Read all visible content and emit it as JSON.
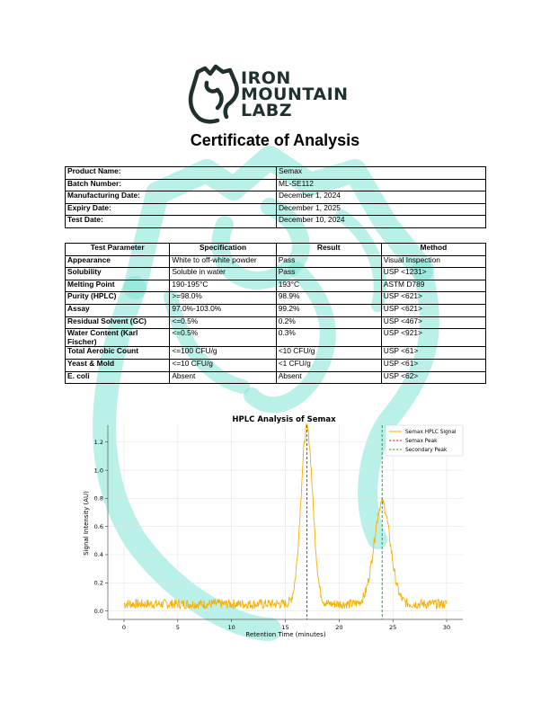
{
  "logo": {
    "line1": "IRON",
    "line2": "MOUNTAIN",
    "line3": "LABZ",
    "icon": "mountain-head-icon"
  },
  "title": "Certificate of Analysis",
  "product_info": [
    {
      "label": "Product Name:",
      "value": "Semax"
    },
    {
      "label": "Batch Number:",
      "value": "ML-SE112"
    },
    {
      "label": "Manufacturing Date:",
      "value": "December 1, 2024"
    },
    {
      "label": "Expiry Date:",
      "value": "December 1, 2025"
    },
    {
      "label": "Test Date:",
      "value": "December 10, 2024"
    }
  ],
  "tests": {
    "headers": [
      "Test Parameter",
      "Specification",
      "Result",
      "Method"
    ],
    "rows": [
      [
        "Appearance",
        "White to off-white powder",
        "Pass",
        "Visual Inspection"
      ],
      [
        "Solubility",
        "Soluble in water",
        "Pass",
        "USP <1231>"
      ],
      [
        "Melting Point",
        "190-195°C",
        "193°C",
        "ASTM D789"
      ],
      [
        "Purity (HPLC)",
        ">=98.0%",
        "98.9%",
        "USP <621>"
      ],
      [
        "Assay",
        "97.0%-103.0%",
        "99.2%",
        "USP <621>"
      ],
      [
        "Residual Solvent (GC)",
        "<=0.5%",
        "0.2%",
        "USP <467>"
      ],
      [
        "Water Content (Karl Fischer)",
        "<=0.5%",
        "0.3%",
        "USP <921>"
      ],
      [
        "Total Aerobic Count",
        "<=100 CFU/g",
        "<10 CFU/g",
        "USP <61>"
      ],
      [
        "Yeast & Mold",
        "<=10 CFU/g",
        "<1 CFU/g",
        "USP <61>"
      ],
      [
        "E. coli",
        "Absent",
        "Absent",
        "USP <62>"
      ]
    ]
  },
  "chart_data": {
    "type": "line",
    "title": "HPLC Analysis of Semax",
    "xlabel": "Retention Time (minutes)",
    "ylabel": "Signal Intensity (AU)",
    "xlim": [
      -1.5,
      31.5
    ],
    "ylim": [
      -0.06,
      1.32
    ],
    "xticks": [
      0,
      5,
      10,
      15,
      20,
      25,
      30
    ],
    "yticks": [
      0.0,
      0.2,
      0.4,
      0.6,
      0.8,
      1.0,
      1.2
    ],
    "grid": true,
    "legend_position": "top-right",
    "series": [
      {
        "name": "Semax HPLC Signal",
        "color": "#f5b000",
        "baseline": 0.05,
        "noise": 0.035,
        "peaks": [
          {
            "center": 17,
            "height": 1.25,
            "width": 0.55
          },
          {
            "center": 24,
            "height": 0.72,
            "width": 0.75
          }
        ],
        "x_range": [
          0,
          30
        ]
      }
    ],
    "vlines": [
      {
        "name": "Semax Peak",
        "x": 17,
        "color": "#d62728",
        "style": "dashed"
      },
      {
        "name": "Secondary Peak",
        "x": 24,
        "color": "#2ca02c",
        "style": "dashed"
      }
    ]
  }
}
